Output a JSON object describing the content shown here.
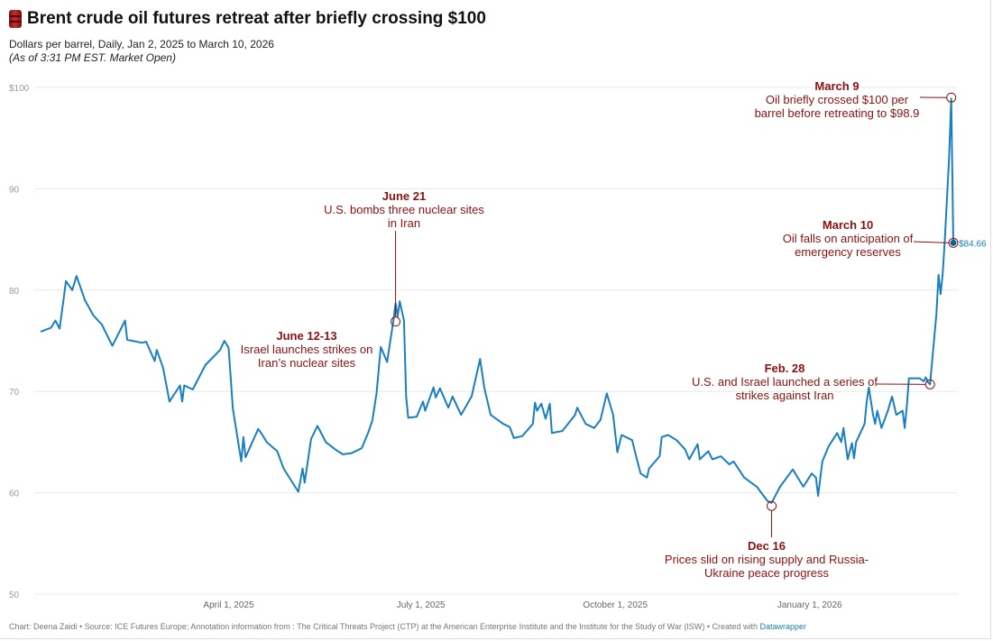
{
  "title": "Brent crude oil futures retreat after briefly crossing $100",
  "title_icon": "oil-barrel-icon",
  "subtitle": "Dollars per barrel, Daily, Jan 2, 2025 to March 10, 2026",
  "note": "(As of 3:31 PM EST. Market Open)",
  "footer": {
    "text": "Chart: Deena Zaidi • Source: ICE Futures Europe; Annotation information from : The Critical Threats Project (CTP) at the American Enterprise Institute and the Institute for the Study of War (ISW) • Created with ",
    "link": "Datawrapper"
  },
  "colors": {
    "line": "#1a7fc1",
    "annotation": "#8b1111",
    "grid": "#e8e8e8",
    "axis_text": "#999999",
    "end_label": "#1a7fc1"
  },
  "chart_data": {
    "type": "line",
    "title": "Brent crude oil futures retreat after briefly crossing $100",
    "xlabel": "",
    "ylabel": "",
    "ylim": [
      50,
      100
    ],
    "xlim": [
      "2025-01-02",
      "2026-03-10"
    ],
    "grid": true,
    "y_ticks": [
      {
        "v": 100,
        "label": "$100"
      },
      {
        "v": 90,
        "label": "90"
      },
      {
        "v": 80,
        "label": "80"
      },
      {
        "v": 70,
        "label": "70"
      },
      {
        "v": 60,
        "label": "60"
      },
      {
        "v": 50,
        "label": "50"
      }
    ],
    "x_ticks": [
      {
        "d": "2025-04-01",
        "label": "April 1, 2025"
      },
      {
        "d": "2025-07-01",
        "label": "July 1, 2025"
      },
      {
        "d": "2025-10-01",
        "label": "October 1, 2025"
      },
      {
        "d": "2026-01-01",
        "label": "January 1, 2026"
      }
    ],
    "end_label": "$84.66",
    "series": [
      {
        "points": [
          [
            "2025-01-02",
            75.9
          ],
          [
            "2025-01-07",
            76.3
          ],
          [
            "2025-01-09",
            77.0
          ],
          [
            "2025-01-11",
            76.2
          ],
          [
            "2025-01-13",
            79.3
          ],
          [
            "2025-01-14",
            80.9
          ],
          [
            "2025-01-17",
            80.0
          ],
          [
            "2025-01-19",
            81.4
          ],
          [
            "2025-01-23",
            79.0
          ],
          [
            "2025-01-27",
            77.5
          ],
          [
            "2025-01-31",
            76.6
          ],
          [
            "2025-02-05",
            74.5
          ],
          [
            "2025-02-11",
            77.0
          ],
          [
            "2025-02-12",
            75.1
          ],
          [
            "2025-02-19",
            74.8
          ],
          [
            "2025-02-21",
            74.9
          ],
          [
            "2025-02-25",
            73.0
          ],
          [
            "2025-02-26",
            74.1
          ],
          [
            "2025-03-01",
            72.3
          ],
          [
            "2025-03-04",
            69.0
          ],
          [
            "2025-03-09",
            70.6
          ],
          [
            "2025-03-10",
            69.0
          ],
          [
            "2025-03-11",
            70.6
          ],
          [
            "2025-03-15",
            70.2
          ],
          [
            "2025-03-21",
            72.6
          ],
          [
            "2025-03-28",
            74.1
          ],
          [
            "2025-03-30",
            75.0
          ],
          [
            "2025-04-01",
            74.3
          ],
          [
            "2025-04-03",
            68.3
          ],
          [
            "2025-04-07",
            63.1
          ],
          [
            "2025-04-08",
            65.5
          ],
          [
            "2025-04-09",
            63.5
          ],
          [
            "2025-04-15",
            66.3
          ],
          [
            "2025-04-17",
            65.7
          ],
          [
            "2025-04-19",
            65.0
          ],
          [
            "2025-04-24",
            64.1
          ],
          [
            "2025-04-27",
            62.4
          ],
          [
            "2025-05-04",
            60.1
          ],
          [
            "2025-05-06",
            62.4
          ],
          [
            "2025-05-07",
            61.0
          ],
          [
            "2025-05-10",
            65.3
          ],
          [
            "2025-05-13",
            66.6
          ],
          [
            "2025-05-17",
            65.0
          ],
          [
            "2025-05-22",
            64.2
          ],
          [
            "2025-05-25",
            63.8
          ],
          [
            "2025-05-29",
            63.9
          ],
          [
            "2025-06-03",
            64.4
          ],
          [
            "2025-06-06",
            65.9
          ],
          [
            "2025-06-08",
            67.1
          ],
          [
            "2025-06-10",
            69.8
          ],
          [
            "2025-06-12",
            74.4
          ],
          [
            "2025-06-15",
            72.9
          ],
          [
            "2025-06-18",
            77.0
          ],
          [
            "2025-06-19",
            78.7
          ],
          [
            "2025-06-20",
            77.4
          ],
          [
            "2025-06-21",
            78.9
          ],
          [
            "2025-06-23",
            77.0
          ],
          [
            "2025-06-24",
            69.5
          ],
          [
            "2025-06-25",
            67.4
          ],
          [
            "2025-06-29",
            67.5
          ],
          [
            "2025-07-02",
            69.0
          ],
          [
            "2025-07-03",
            68.1
          ],
          [
            "2025-07-07",
            70.4
          ],
          [
            "2025-07-08",
            69.4
          ],
          [
            "2025-07-10",
            70.3
          ],
          [
            "2025-07-14",
            68.4
          ],
          [
            "2025-07-16",
            69.5
          ],
          [
            "2025-07-20",
            67.7
          ],
          [
            "2025-07-25",
            69.5
          ],
          [
            "2025-07-29",
            73.2
          ],
          [
            "2025-07-31",
            70.4
          ],
          [
            "2025-08-03",
            67.7
          ],
          [
            "2025-08-09",
            66.8
          ],
          [
            "2025-08-12",
            66.5
          ],
          [
            "2025-08-14",
            65.4
          ],
          [
            "2025-08-18",
            65.6
          ],
          [
            "2025-08-23",
            66.8
          ],
          [
            "2025-08-24",
            68.9
          ],
          [
            "2025-08-25",
            68.1
          ],
          [
            "2025-08-27",
            68.8
          ],
          [
            "2025-08-29",
            67.3
          ],
          [
            "2025-08-31",
            68.8
          ],
          [
            "2025-09-01",
            65.9
          ],
          [
            "2025-09-06",
            66.1
          ],
          [
            "2025-09-12",
            67.7
          ],
          [
            "2025-09-13",
            68.4
          ],
          [
            "2025-09-17",
            66.8
          ],
          [
            "2025-09-21",
            66.4
          ],
          [
            "2025-09-24",
            67.2
          ],
          [
            "2025-09-27",
            69.8
          ],
          [
            "2025-09-30",
            67.7
          ],
          [
            "2025-10-02",
            64.0
          ],
          [
            "2025-10-04",
            65.7
          ],
          [
            "2025-10-09",
            65.2
          ],
          [
            "2025-10-11",
            63.5
          ],
          [
            "2025-10-13",
            61.9
          ],
          [
            "2025-10-16",
            61.5
          ],
          [
            "2025-10-17",
            62.4
          ],
          [
            "2025-10-22",
            63.6
          ],
          [
            "2025-10-23",
            65.5
          ],
          [
            "2025-10-26",
            65.7
          ],
          [
            "2025-10-30",
            65.2
          ],
          [
            "2025-11-03",
            64.3
          ],
          [
            "2025-11-05",
            63.3
          ],
          [
            "2025-11-09",
            64.8
          ],
          [
            "2025-11-10",
            63.3
          ],
          [
            "2025-11-14",
            64.1
          ],
          [
            "2025-11-16",
            63.3
          ],
          [
            "2025-11-20",
            63.6
          ],
          [
            "2025-11-24",
            62.8
          ],
          [
            "2025-11-26",
            63.1
          ],
          [
            "2025-12-01",
            61.5
          ],
          [
            "2025-12-07",
            60.6
          ],
          [
            "2025-12-12",
            59.2
          ],
          [
            "2025-12-14",
            59.0
          ],
          [
            "2025-12-18",
            60.6
          ],
          [
            "2025-12-24",
            62.3
          ],
          [
            "2025-12-29",
            60.6
          ],
          [
            "2026-01-02",
            61.9
          ],
          [
            "2026-01-04",
            61.5
          ],
          [
            "2026-01-05",
            59.7
          ],
          [
            "2026-01-07",
            63.1
          ],
          [
            "2026-01-10",
            64.6
          ],
          [
            "2026-01-14",
            65.9
          ],
          [
            "2026-01-16",
            65.0
          ],
          [
            "2026-01-17",
            66.4
          ],
          [
            "2026-01-19",
            63.3
          ],
          [
            "2026-01-21",
            64.9
          ],
          [
            "2026-01-22",
            63.4
          ],
          [
            "2026-01-23",
            65.0
          ],
          [
            "2026-01-27",
            66.8
          ],
          [
            "2026-01-28",
            69.0
          ],
          [
            "2026-01-29",
            70.4
          ],
          [
            "2026-01-31",
            67.7
          ],
          [
            "2026-02-01",
            66.8
          ],
          [
            "2026-02-02",
            68.1
          ],
          [
            "2026-02-04",
            66.4
          ],
          [
            "2026-02-07",
            68.1
          ],
          [
            "2026-02-09",
            69.5
          ],
          [
            "2026-02-11",
            67.7
          ],
          [
            "2026-02-14",
            68.1
          ],
          [
            "2026-02-15",
            66.4
          ],
          [
            "2026-02-16",
            68.6
          ],
          [
            "2026-02-17",
            71.3
          ],
          [
            "2026-02-22",
            71.3
          ],
          [
            "2026-02-24",
            71.0
          ],
          [
            "2026-02-25",
            71.4
          ],
          [
            "2026-02-26",
            70.9
          ],
          [
            "2026-02-27",
            70.7
          ],
          [
            "2026-03-02",
            77.7
          ],
          [
            "2026-03-03",
            81.5
          ],
          [
            "2026-03-04",
            79.6
          ],
          [
            "2026-03-05",
            81.7
          ],
          [
            "2026-03-06",
            85.0
          ],
          [
            "2026-03-08",
            93.0
          ],
          [
            "2026-03-09",
            98.9
          ],
          [
            "2026-03-10",
            84.66
          ]
        ]
      }
    ],
    "annotations": [
      {
        "id": "june21",
        "title": "June 21",
        "lines": [
          "U.S. bombs three nuclear sites",
          "in Iran"
        ],
        "anchor": {
          "date": "2025-06-19",
          "value": 76.9
        }
      },
      {
        "id": "june12",
        "title": "June 12-13",
        "lines": [
          "Israel launches strikes on",
          "Iran’s nuclear sites"
        ]
      },
      {
        "id": "dec16",
        "title": "Dec 16",
        "lines": [
          "Prices slid on rising supply and Russia-",
          "Ukraine peace progress"
        ],
        "anchor": {
          "date": "2025-12-14",
          "value": 58.7
        }
      },
      {
        "id": "feb28",
        "title": "Feb. 28",
        "lines": [
          "U.S. and Israel launched a series of",
          "strikes against Iran"
        ],
        "anchor": {
          "date": "2026-02-27",
          "value": 70.7
        }
      },
      {
        "id": "mar9",
        "title": "March 9",
        "lines": [
          "Oil briefly crossed $100 per",
          "barrel before retreating to $98.9"
        ],
        "anchor": {
          "date": "2026-03-09",
          "value": 99.0
        }
      },
      {
        "id": "mar10",
        "title": "March 10",
        "lines": [
          "Oil falls on anticipation of",
          "emergency reserves"
        ],
        "anchor": {
          "date": "2026-03-10",
          "value": 84.66
        }
      }
    ]
  }
}
